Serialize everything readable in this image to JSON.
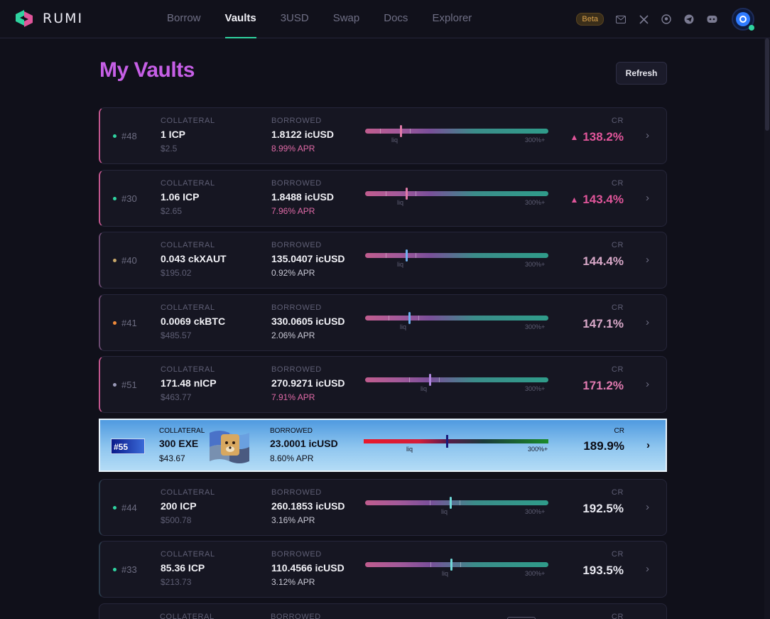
{
  "brand": {
    "name": "RUMI"
  },
  "nav": [
    {
      "label": "Borrow",
      "active": false
    },
    {
      "label": "Vaults",
      "active": true
    },
    {
      "label": "3USD",
      "active": false
    },
    {
      "label": "Swap",
      "active": false
    },
    {
      "label": "Docs",
      "active": false
    },
    {
      "label": "Explorer",
      "active": false
    }
  ],
  "header": {
    "badge": "Beta",
    "icons": [
      "mail-icon",
      "x-icon",
      "github-icon",
      "telegram-icon",
      "discord-icon"
    ]
  },
  "page": {
    "title": "My Vaults",
    "refresh_label": "Refresh"
  },
  "bar_labels": {
    "liq": "liq",
    "max": "300%+"
  },
  "labels": {
    "collateral": "COLLATERAL",
    "borrowed": "BORROWED",
    "cr": "CR"
  },
  "vaults": [
    {
      "id": "#48",
      "dot": "#2fd3a0",
      "collateral": "1 ICP",
      "collateral_usd": "$2.5",
      "borrowed": "1.8122 icUSD",
      "apr": "8.99% APR",
      "cr": "138.2%",
      "cr_level": 0.19,
      "warning": true,
      "mark_color": "#e07aa8",
      "cr_color": "#e0559a"
    },
    {
      "id": "#30",
      "dot": "#2fd3a0",
      "collateral": "1.06 ICP",
      "collateral_usd": "$2.65",
      "borrowed": "1.8488 icUSD",
      "apr": "7.96% APR",
      "cr": "143.4%",
      "cr_level": 0.22,
      "warning": true,
      "mark_color": "#e07aa8",
      "cr_color": "#e0559a"
    },
    {
      "id": "#40",
      "dot": "#c8a86a",
      "collateral": "0.043 ckXAUT",
      "collateral_usd": "$195.02",
      "borrowed": "135.0407 icUSD",
      "apr": "0.92% APR",
      "cr": "144.4%",
      "cr_level": 0.22,
      "warning": false,
      "mark_color": "#6fb0f0",
      "cr_color": "#d8a8c8"
    },
    {
      "id": "#41",
      "dot": "#f08a3a",
      "collateral": "0.0069 ckBTC",
      "collateral_usd": "$485.57",
      "borrowed": "330.0605 icUSD",
      "apr": "2.06% APR",
      "cr": "147.1%",
      "cr_level": 0.235,
      "warning": false,
      "mark_color": "#6fb0f0",
      "cr_color": "#d8a8c8"
    },
    {
      "id": "#51",
      "dot": "#9a9ab8",
      "collateral": "171.48 nICP",
      "collateral_usd": "$463.77",
      "borrowed": "270.9271 icUSD",
      "apr": "7.91% APR",
      "cr": "171.2%",
      "cr_level": 0.35,
      "warning": false,
      "mark_color": "#b088e0",
      "cr_color": "#e07ab0"
    },
    {
      "id": "#44",
      "dot": "#2fd3a0",
      "collateral": "200 ICP",
      "collateral_usd": "$500.78",
      "borrowed": "260.1853 icUSD",
      "apr": "3.16% APR",
      "cr": "192.5%",
      "cr_level": 0.46,
      "warning": false,
      "mark_color": "#6fd8d8",
      "cr_color": "#e8e8f0"
    },
    {
      "id": "#33",
      "dot": "#2fd3a0",
      "collateral": "85.36 ICP",
      "collateral_usd": "$213.73",
      "borrowed": "110.4566 icUSD",
      "apr": "3.12% APR",
      "cr": "193.5%",
      "cr_level": 0.465,
      "warning": false,
      "mark_color": "#6fd8d8",
      "cr_color": "#e8e8f0"
    }
  ],
  "special_vault": {
    "id": "#55",
    "collateral": "300 EXE",
    "collateral_usd": "$43.67",
    "borrowed": "23.0001 icUSD",
    "apr": "8.60% APR",
    "cr": "189.9%",
    "cr_level": 0.45
  },
  "partial_row": {
    "collateral_label": "COLLATERAL",
    "borrowed_label": "BORROWED",
    "cr_label": "CR"
  }
}
